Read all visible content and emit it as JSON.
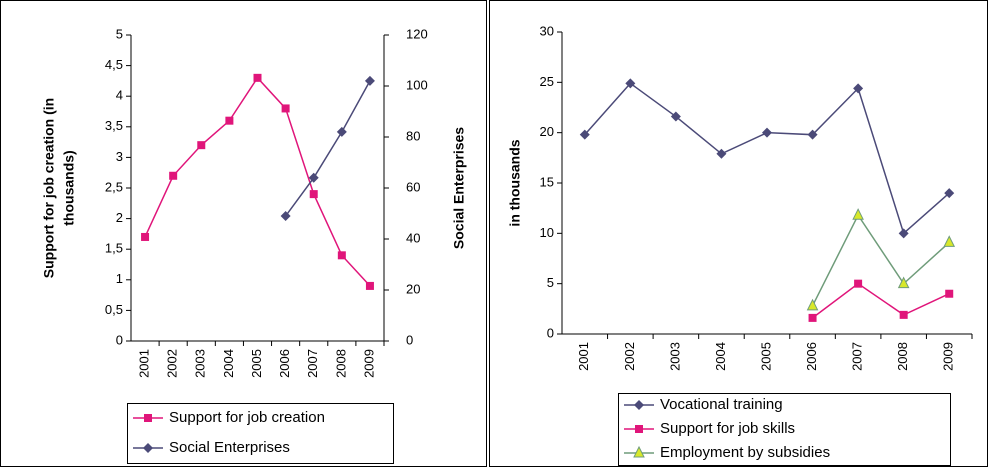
{
  "chart_data": [
    {
      "type": "line",
      "categories": [
        "2001",
        "2002",
        "2003",
        "2004",
        "2005",
        "2006",
        "2007",
        "2008",
        "2009"
      ],
      "ylabel": [
        "Support for job creation  (in",
        "thousands)"
      ],
      "y2label": "Social Enterprises",
      "ylim": [
        0,
        5
      ],
      "yticks": [
        0,
        {
          "value": 0.5,
          "label": "0,5"
        },
        1,
        {
          "value": 1.5,
          "label": "1,5"
        },
        2,
        {
          "value": 2.5,
          "label": "2,5"
        },
        3,
        {
          "value": 3.5,
          "label": "3,5"
        },
        4,
        {
          "value": 4.5,
          "label": "4,5"
        },
        5
      ],
      "y2lim": [
        0,
        120
      ],
      "y2ticks": [
        0,
        20,
        40,
        60,
        80,
        100,
        120
      ],
      "grid": false,
      "series": [
        {
          "name": "Support for job creation",
          "color": "#e0157a",
          "marker": "square",
          "marker_color": "#e0157a",
          "values": [
            1.7,
            2.7,
            3.2,
            3.6,
            4.3,
            3.8,
            2.4,
            1.4,
            0.9
          ]
        },
        {
          "name": "Social Enterprises",
          "color": "#4b4a78",
          "marker": "diamond",
          "marker_color": "#4b4a78",
          "axis": "y2",
          "values": [
            null,
            null,
            null,
            null,
            null,
            49,
            64,
            82,
            102
          ]
        }
      ]
    },
    {
      "type": "line",
      "categories": [
        "2001",
        "2002",
        "2003",
        "2004",
        "2005",
        "2006",
        "2007",
        "2008",
        "2009"
      ],
      "ylabel": [
        "in thousands"
      ],
      "ylim": [
        0,
        30
      ],
      "yticks": [
        0,
        5,
        10,
        15,
        20,
        25,
        30
      ],
      "grid": false,
      "series": [
        {
          "name": "Vocational training",
          "color": "#4b4a78",
          "marker": "diamond",
          "marker_color": "#4b4a78",
          "values": [
            19.8,
            24.9,
            21.6,
            17.9,
            20,
            19.8,
            24.4,
            10,
            14
          ]
        },
        {
          "name": "Support for job skills",
          "color": "#e0157a",
          "marker": "square",
          "marker_color": "#e0157a",
          "values": [
            null,
            null,
            null,
            null,
            null,
            1.6,
            5,
            1.9,
            4
          ]
        },
        {
          "name": "Employment by subsidies",
          "color": "#6f9c7a",
          "marker": "triangle",
          "marker_color": "#d8e82a",
          "values": [
            null,
            null,
            null,
            null,
            null,
            2.8,
            11.8,
            5,
            9.1
          ]
        }
      ]
    }
  ]
}
